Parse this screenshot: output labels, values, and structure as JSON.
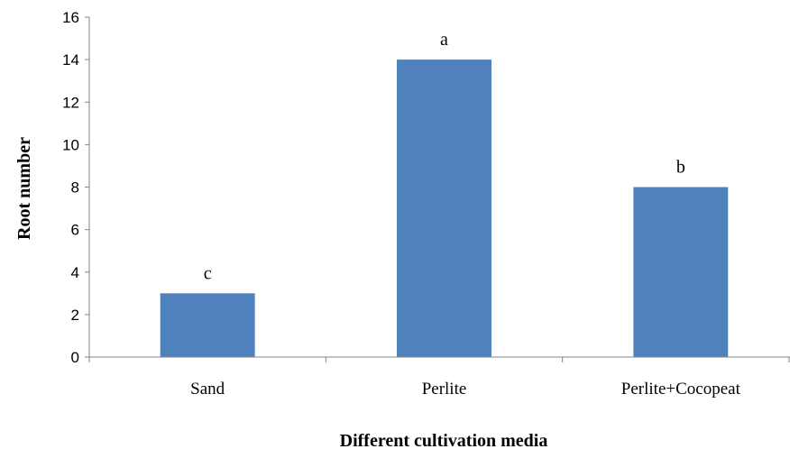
{
  "chart_data": {
    "type": "bar",
    "categories": [
      "Sand",
      "Perlite",
      "Perlite+Cocopeat"
    ],
    "values": [
      3,
      14,
      8
    ],
    "bar_labels": [
      "c",
      "a",
      "b"
    ],
    "title": "",
    "xlabel": "Different cultivation media",
    "ylabel": "Root number",
    "ylim": [
      0,
      16
    ],
    "yticks": [
      "0",
      "2",
      "4",
      "6",
      "8",
      "10",
      "12",
      "14",
      "16"
    ],
    "grid": false,
    "legend": "none",
    "bar_color": "#4f81bd"
  }
}
